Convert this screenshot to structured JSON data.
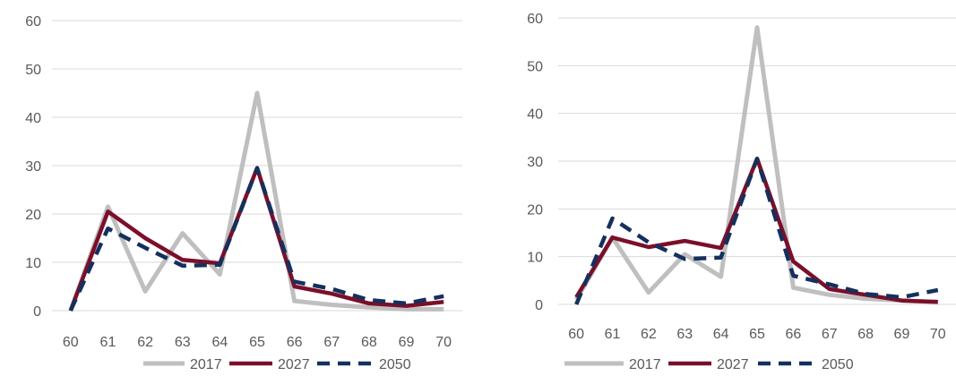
{
  "chart_data": [
    {
      "type": "line",
      "x": [
        "60",
        "61",
        "62",
        "63",
        "64",
        "65",
        "66",
        "67",
        "68",
        "69",
        "70"
      ],
      "ylim": [
        0,
        60
      ],
      "yticks": [
        "0",
        "10",
        "20",
        "30",
        "40",
        "50",
        "60"
      ],
      "grid": true,
      "legend_position": "bottom",
      "series": [
        {
          "name": "2017",
          "color": "#bfbfbf",
          "style": "solid-light",
          "values": [
            0,
            21.5,
            4,
            16,
            7.5,
            45,
            2,
            1.2,
            0.7,
            0.3,
            0.3
          ]
        },
        {
          "name": "2027",
          "color": "#7b0f2a",
          "style": "solid-heavy",
          "values": [
            0,
            20.5,
            15,
            10.5,
            9.8,
            29.5,
            5,
            3.5,
            1.5,
            1,
            1.8
          ]
        },
        {
          "name": "2050",
          "color": "#14305e",
          "style": "dashed",
          "values": [
            0,
            17,
            13,
            9.3,
            9.5,
            29.5,
            6,
            4.5,
            2.2,
            1.5,
            3
          ]
        }
      ]
    },
    {
      "type": "line",
      "x": [
        "60",
        "61",
        "62",
        "63",
        "64",
        "65",
        "66",
        "67",
        "68",
        "69",
        "70"
      ],
      "ylim": [
        0,
        60
      ],
      "yticks": [
        "0",
        "10",
        "20",
        "30",
        "40",
        "50",
        "60"
      ],
      "grid": true,
      "legend_position": "bottom",
      "series": [
        {
          "name": "2017",
          "color": "#bfbfbf",
          "style": "solid-light",
          "values": [
            1,
            14,
            2.5,
            10.5,
            5.8,
            58,
            3.5,
            2,
            1.2,
            0.8,
            0.5
          ]
        },
        {
          "name": "2027",
          "color": "#7b0f2a",
          "style": "solid-heavy",
          "values": [
            1.5,
            14,
            12,
            13.3,
            11.8,
            30.5,
            9,
            3.2,
            2,
            0.8,
            0.5
          ]
        },
        {
          "name": "2050",
          "color": "#14305e",
          "style": "dashed",
          "values": [
            0,
            18,
            13,
            9.5,
            9.8,
            30.5,
            6,
            4.2,
            2.2,
            1.5,
            3
          ]
        }
      ]
    }
  ]
}
